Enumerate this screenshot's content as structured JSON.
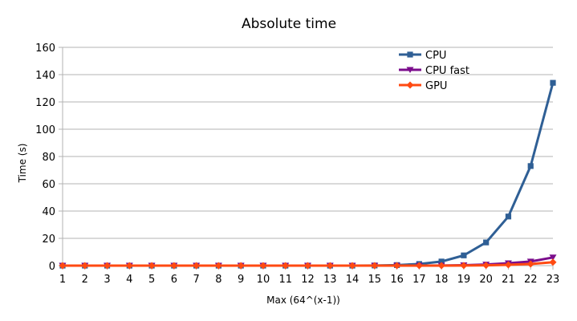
{
  "chart_data": {
    "type": "line",
    "title": "Absolute time",
    "xlabel": "Max (64^(x-1))",
    "ylabel": "Time (s)",
    "x": [
      1,
      2,
      3,
      4,
      5,
      6,
      7,
      8,
      9,
      10,
      11,
      12,
      13,
      14,
      15,
      16,
      17,
      18,
      19,
      20,
      21,
      22,
      23
    ],
    "xlim": [
      1,
      23
    ],
    "ylim": [
      0,
      160
    ],
    "yticks": [
      0,
      20,
      40,
      60,
      80,
      100,
      120,
      140,
      160
    ],
    "grid": "horizontal",
    "legend_position": "top-right",
    "series": [
      {
        "name": "CPU",
        "color": "#2f5f95",
        "marker": "square",
        "values": [
          0,
          0,
          0,
          0,
          0,
          0,
          0,
          0,
          0,
          0,
          0,
          0,
          0,
          0,
          0.1,
          0.4,
          1.2,
          3,
          7.5,
          17,
          36,
          73,
          134
        ]
      },
      {
        "name": "CPU fast",
        "color": "#7b0d8c",
        "marker": "triangle-down",
        "values": [
          0,
          0,
          0,
          0,
          0,
          0,
          0,
          0,
          0,
          0,
          0,
          0,
          0,
          0,
          0,
          0,
          0,
          0.1,
          0.3,
          0.8,
          1.8,
          3,
          6
        ]
      },
      {
        "name": "GPU",
        "color": "#ff4a12",
        "marker": "diamond",
        "values": [
          0,
          0,
          0,
          0,
          0,
          0,
          0,
          0,
          0,
          0,
          0,
          0,
          0,
          0,
          0,
          0,
          0,
          0,
          0.1,
          0.2,
          0.6,
          1.2,
          2.5
        ]
      }
    ]
  }
}
